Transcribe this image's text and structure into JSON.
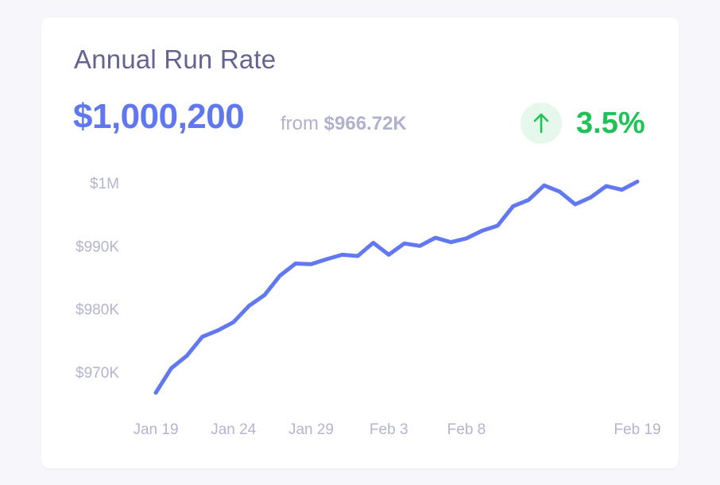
{
  "card": {
    "title": "Annual Run Rate",
    "value": "$1,000,200",
    "from_label": "from",
    "from_value": "$966.72K",
    "change": "3.5%",
    "change_icon": "arrow-up-icon",
    "change_direction": "up"
  },
  "colors": {
    "line": "#6178f0",
    "value": "#5f77ef",
    "positive": "#1fc256",
    "positive_bg": "#e6f7ec",
    "muted": "#b3b4cf",
    "title": "#65638f"
  },
  "chart_data": {
    "type": "line",
    "title": "",
    "xlabel": "",
    "ylabel": "",
    "grid": false,
    "ylim": [
      966000,
      1000200
    ],
    "y_ticks": [
      {
        "value": 1000000,
        "label": "$1M"
      },
      {
        "value": 990000,
        "label": "$990K"
      },
      {
        "value": 980000,
        "label": "$980K"
      },
      {
        "value": 970000,
        "label": "$970K"
      }
    ],
    "x_ticks": [
      {
        "day": 0,
        "label": "Jan 19"
      },
      {
        "day": 5,
        "label": "Jan 24"
      },
      {
        "day": 10,
        "label": "Jan 29"
      },
      {
        "day": 15,
        "label": "Feb 3"
      },
      {
        "day": 20,
        "label": "Feb 8"
      },
      {
        "day": 31,
        "label": "Feb 19"
      }
    ],
    "x": [
      "Jan 19",
      "Jan 20",
      "Jan 21",
      "Jan 22",
      "Jan 23",
      "Jan 24",
      "Jan 25",
      "Jan 26",
      "Jan 27",
      "Jan 28",
      "Jan 29",
      "Jan 30",
      "Jan 31",
      "Feb 1",
      "Feb 2",
      "Feb 3",
      "Feb 4",
      "Feb 5",
      "Feb 6",
      "Feb 7",
      "Feb 8",
      "Feb 9",
      "Feb 10",
      "Feb 11",
      "Feb 12",
      "Feb 13",
      "Feb 14",
      "Feb 15",
      "Feb 16",
      "Feb 17",
      "Feb 18",
      "Feb 19"
    ],
    "series": [
      {
        "values": [
          966720,
          970600,
          972600,
          975600,
          976600,
          977900,
          980500,
          982200,
          985300,
          987200,
          987100,
          987900,
          988600,
          988400,
          990500,
          988600,
          990400,
          990000,
          991300,
          990600,
          991200,
          992400,
          993200,
          996300,
          997300,
          999600,
          998600,
          996600,
          997700,
          999500,
          998900,
          1000200
        ]
      }
    ]
  }
}
